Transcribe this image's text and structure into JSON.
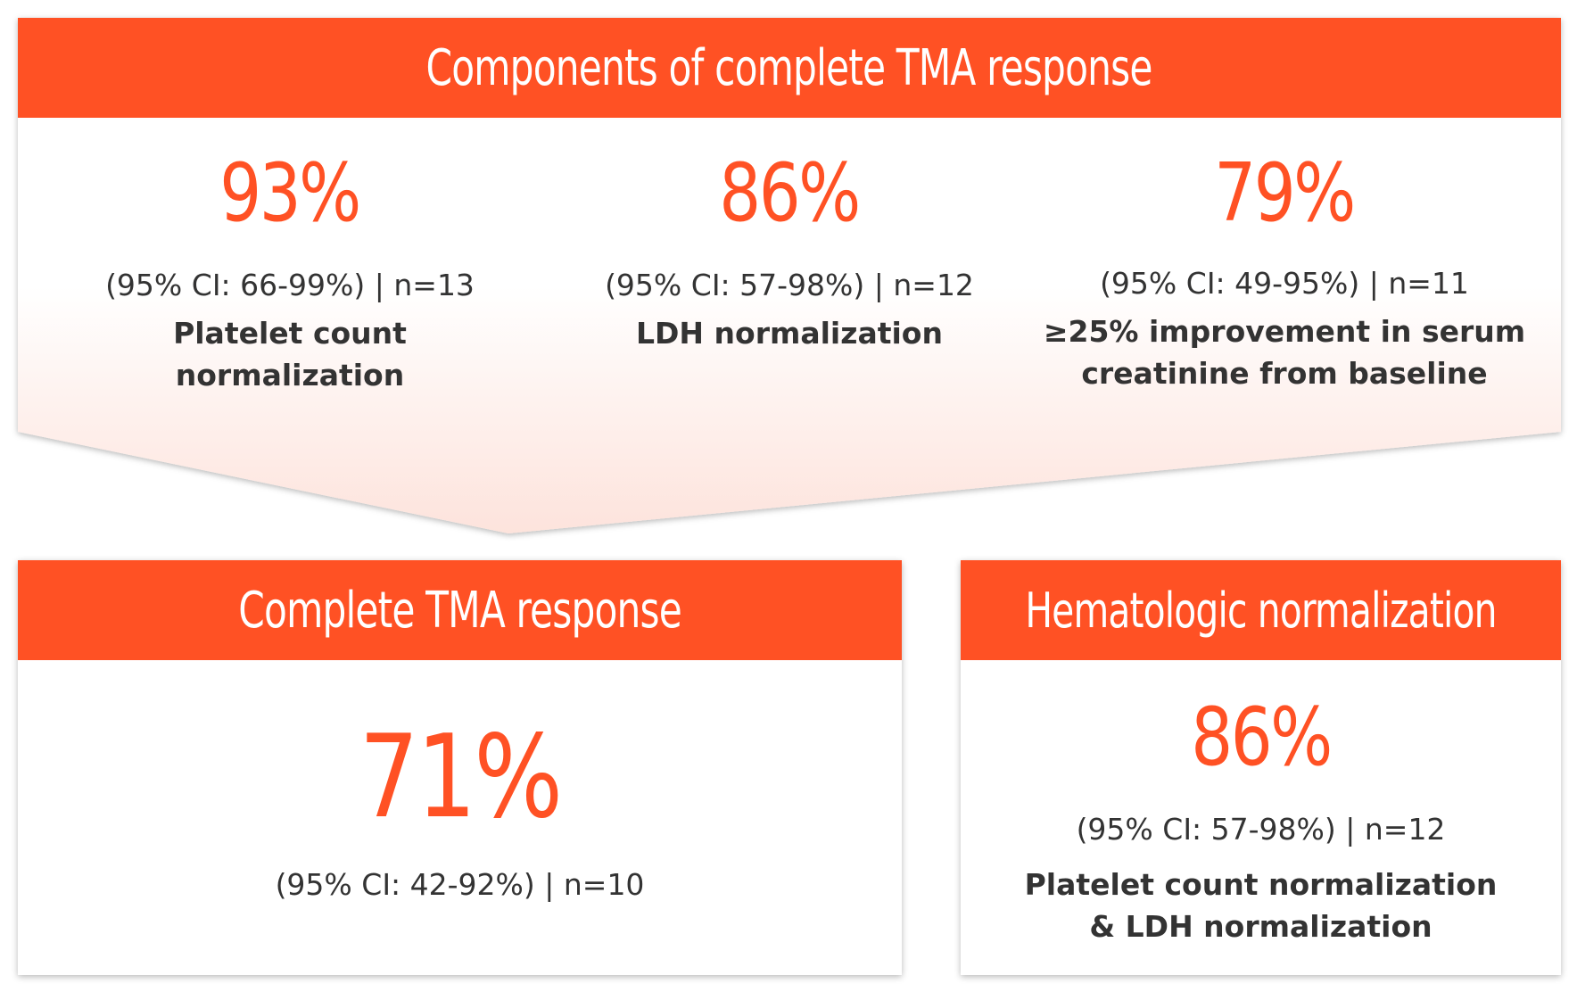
{
  "top": {
    "title": "Components of complete TMA response",
    "items": [
      {
        "percent": "93%",
        "ci": "(95% CI: 66-99%) | n=13",
        "label_line1": "Platelet count",
        "label_line2": "normalization"
      },
      {
        "percent": "86%",
        "ci": "(95% CI: 57-98%) | n=12",
        "label_line1": "LDH normalization",
        "label_line2": ""
      },
      {
        "percent": "79%",
        "ci": "(95% CI: 49-95%) | n=11",
        "label_line1": "≥25% improvement in serum",
        "label_line2": "creatinine from baseline"
      }
    ]
  },
  "complete": {
    "title": "Complete TMA response",
    "percent": "71%",
    "ci": "(95% CI: 42-92%) | n=10"
  },
  "hematologic": {
    "title": "Hematologic normalization",
    "percent": "86%",
    "ci": "(95% CI: 57-98%) | n=12",
    "label_line1": "Platelet count normalization",
    "label_line2": "& LDH normalization"
  },
  "colors": {
    "accent": "#ff5124",
    "text": "#333333",
    "gradient_end": "#fde3dc"
  }
}
